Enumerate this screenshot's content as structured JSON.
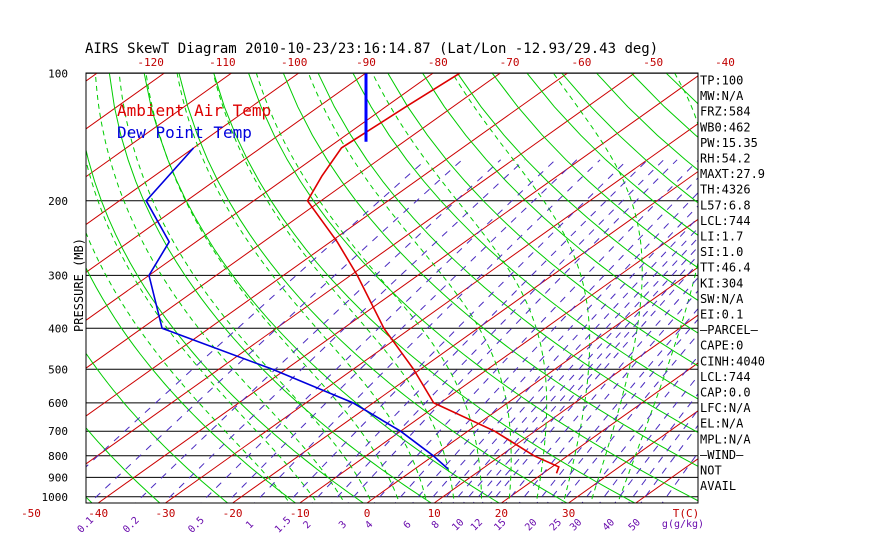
{
  "colors": {
    "background": "#ffffff",
    "frame": "#000000",
    "isotherm": "#cc0000",
    "dry_adiabat": "#00cc00",
    "moist_adiabat": "#00cc00",
    "mixing_ratio": "#4a2bc0",
    "ambient_temp": "#dd0000",
    "dew_point": "#0000dd",
    "wind": "#0000ff",
    "bottom_temp_labels": "#c00000",
    "mixing_labels": "#6a0dad"
  },
  "chart_data": {
    "type": "skew-t",
    "title": "AIRS SkewT Diagram 2010-10-23/23:16:14.87 (Lat/Lon -12.93/29.43 deg)",
    "ylabel": "PRESSURE (MB)",
    "pressure_ticks": [
      100,
      200,
      300,
      400,
      500,
      600,
      700,
      800,
      900,
      1000
    ],
    "top_temp_ticks": [
      -120,
      -110,
      -100,
      -90,
      -80,
      -70,
      -60,
      -50,
      -40
    ],
    "bottom_temp_ticks": [
      -50,
      -40,
      -30,
      -20,
      -10,
      0,
      10,
      20,
      30
    ],
    "bottom_axis_unit": "T(C)",
    "mixing_ratio_ticks": [
      "0.1",
      "0.2",
      "0.5",
      "1",
      "1.5",
      "2",
      "3",
      "4",
      "6",
      "8",
      "10",
      "12",
      "15",
      "20",
      "25",
      "30",
      "40",
      "50"
    ],
    "mixing_ratio_unit": "g(g/kg)",
    "legend": {
      "ambient_label": "Ambient Air Temp",
      "dewpoint_label": "Dew Point Temp",
      "placement": "top-left"
    },
    "series": [
      {
        "name": "Ambient Air Temp",
        "points": [
          {
            "p": 100,
            "t": -76
          },
          {
            "p": 120,
            "t": -77
          },
          {
            "p": 150,
            "t": -78
          },
          {
            "p": 175,
            "t": -75
          },
          {
            "p": 200,
            "t": -72
          },
          {
            "p": 250,
            "t": -59
          },
          {
            "p": 300,
            "t": -49
          },
          {
            "p": 400,
            "t": -34
          },
          {
            "p": 500,
            "t": -21
          },
          {
            "p": 600,
            "t": -11
          },
          {
            "p": 700,
            "t": 4
          },
          {
            "p": 800,
            "t": 15
          },
          {
            "p": 850,
            "t": 21
          },
          {
            "p": 880,
            "t": 22
          }
        ]
      },
      {
        "name": "Dew Point Temp",
        "points": [
          {
            "p": 150,
            "t": -100
          },
          {
            "p": 200,
            "t": -96
          },
          {
            "p": 250,
            "t": -84
          },
          {
            "p": 300,
            "t": -80
          },
          {
            "p": 400,
            "t": -67
          },
          {
            "p": 500,
            "t": -42
          },
          {
            "p": 600,
            "t": -23
          },
          {
            "p": 700,
            "t": -10
          },
          {
            "p": 800,
            "t": 0
          },
          {
            "p": 860,
            "t": 5
          }
        ]
      }
    ],
    "wind_bar": {
      "p_top": 100,
      "p_bottom": 145
    },
    "indices": [
      "TP:100",
      "MW:N/A",
      "FRZ:584",
      "WB0:462",
      "PW:15.35",
      "RH:54.2",
      "MAXT:27.9",
      "TH:4326",
      "L57:6.8",
      "LCL:744",
      "LI:1.7",
      "SI:1.0",
      "TT:46.4",
      "KI:304",
      "SW:N/A",
      "EI:0.1",
      "—PARCEL—",
      "CAPE:0",
      "CINH:4040",
      "LCL:744",
      "CAP:0.0",
      "LFC:N/A",
      "EL:N/A",
      "MPL:N/A",
      "—WIND—",
      "NOT",
      "AVAIL"
    ]
  }
}
